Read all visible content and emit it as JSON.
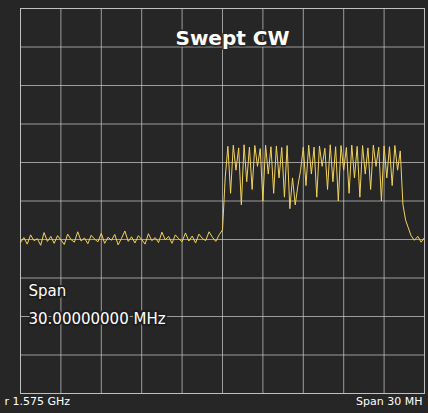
{
  "chart_data": {
    "type": "line",
    "title": "Swept CW",
    "annotations": [
      "Span",
      "30.00000000 MHz",
      "r 1.575 GHz",
      "Span 30 MH"
    ],
    "x": [
      1560,
      1560.25,
      1560.5,
      1560.75,
      1561,
      1561.25,
      1561.5,
      1561.75,
      1562,
      1562.25,
      1562.5,
      1562.75,
      1563,
      1563.25,
      1563.5,
      1563.75,
      1564,
      1564.25,
      1564.5,
      1564.75,
      1565,
      1565.25,
      1565.5,
      1565.75,
      1566,
      1566.25,
      1566.5,
      1566.75,
      1567,
      1567.25,
      1567.5,
      1567.75,
      1568,
      1568.25,
      1568.5,
      1568.75,
      1569,
      1569.25,
      1569.5,
      1569.75,
      1570,
      1570.25,
      1570.5,
      1570.75,
      1571,
      1571.25,
      1571.5,
      1571.75,
      1572,
      1572.25,
      1572.5,
      1572.75,
      1573,
      1573.25,
      1573.5,
      1573.75,
      1574,
      1574.25,
      1574.5,
      1574.75,
      1575,
      1575.2,
      1575.4,
      1575.6,
      1575.8,
      1576,
      1576.2,
      1576.4,
      1576.6,
      1576.8,
      1577,
      1577.2,
      1577.4,
      1577.6,
      1577.8,
      1578,
      1578.2,
      1578.4,
      1578.6,
      1578.8,
      1579,
      1579.2,
      1579.4,
      1579.6,
      1579.8,
      1580,
      1580.2,
      1580.4,
      1580.6,
      1580.8,
      1581,
      1581.2,
      1581.4,
      1581.6,
      1581.8,
      1582,
      1582.2,
      1582.4,
      1582.6,
      1582.8,
      1583,
      1583.2,
      1583.4,
      1583.6,
      1583.8,
      1584,
      1584.2,
      1584.4,
      1584.6,
      1584.8,
      1585,
      1585.2,
      1585.4,
      1585.6,
      1585.8,
      1586,
      1586.2,
      1586.4,
      1586.6,
      1586.8,
      1587,
      1587.2,
      1587.4,
      1587.6,
      1587.8,
      1588,
      1588.2,
      1588.4,
      1588.6,
      1588.8,
      1589,
      1589.25,
      1589.5,
      1589.75,
      1590
    ],
    "values": [
      3.92,
      4.05,
      3.88,
      4.12,
      3.97,
      4.02,
      3.85,
      4.18,
      3.95,
      4.08,
      3.9,
      4.1,
      3.99,
      3.87,
      4.14,
      4.0,
      3.93,
      4.2,
      3.96,
      4.04,
      3.89,
      4.11,
      4.01,
      3.94,
      4.16,
      3.9,
      4.06,
      3.98,
      4.13,
      3.86,
      4.03,
      4.22,
      3.95,
      4.07,
      3.91,
      4.1,
      4.0,
      3.88,
      4.15,
      3.97,
      4.05,
      3.92,
      4.19,
      3.99,
      4.08,
      3.9,
      4.12,
      4.02,
      3.94,
      4.17,
      3.96,
      4.09,
      3.91,
      4.14,
      4.03,
      3.97,
      4.2,
      4.06,
      3.95,
      4.12,
      4.25,
      5.6,
      6.42,
      5.2,
      6.45,
      5.8,
      6.38,
      4.9,
      6.46,
      5.5,
      6.4,
      5.3,
      6.44,
      5.9,
      6.36,
      5.0,
      6.45,
      5.7,
      6.41,
      5.2,
      6.43,
      5.6,
      6.39,
      5.1,
      6.44,
      4.8,
      5.6,
      4.9,
      5.4,
      5.8,
      6.4,
      5.4,
      6.45,
      5.7,
      6.4,
      5.1,
      6.43,
      5.9,
      6.37,
      5.3,
      6.46,
      5.5,
      6.41,
      5.0,
      6.44,
      5.8,
      6.39,
      5.2,
      6.45,
      5.6,
      6.42,
      5.1,
      6.44,
      5.7,
      6.38,
      5.3,
      6.45,
      5.9,
      6.4,
      5.0,
      6.43,
      5.6,
      6.41,
      5.4,
      6.44,
      5.8,
      6.3,
      4.9,
      4.5,
      4.3,
      4.1,
      3.98,
      4.08,
      3.93,
      4.05
    ],
    "color": "#f2d35c",
    "xlim": [
      1560,
      1590
    ],
    "xticks": [
      1560,
      1563,
      1566,
      1569,
      1572,
      1575,
      1578,
      1581,
      1584,
      1587,
      1590
    ],
    "ylim": [
      0,
      10
    ],
    "yticks": [
      0,
      1,
      2,
      3,
      4,
      5,
      6,
      7,
      8,
      9,
      10
    ],
    "grid": true,
    "tick_labels": false
  }
}
